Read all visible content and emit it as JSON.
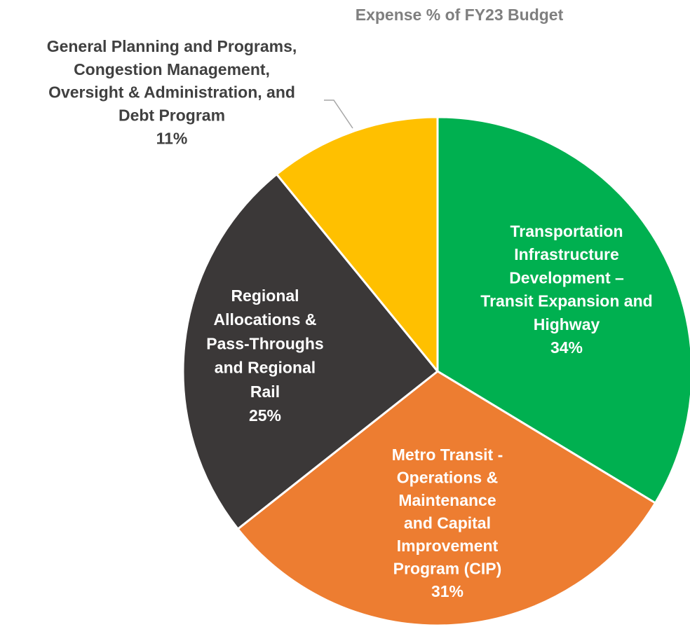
{
  "chart_data": {
    "type": "pie",
    "title": "Expense % of FY23 Budget",
    "categories": [
      "Transportation\nInfrastructure\nDevelopment –\nTransit Expansion and\nHighway",
      "Metro Transit -\nOperations &\nMaintenance\nand Capital\nImprovement\nProgram (CIP)",
      "Regional\nAllocations &\nPass-Throughs\nand Regional\nRail",
      "General Planning and Programs,\nCongestion Management,\nOversight & Administration, and\nDebt Program"
    ],
    "values": [
      34,
      31,
      25,
      11
    ],
    "value_labels": [
      "34%",
      "31%",
      "25%",
      "11%"
    ],
    "colors": [
      "#00b050",
      "#ed7d31",
      "#3b3838",
      "#ffc000"
    ],
    "label_colors": [
      "#ffffff",
      "#ffffff",
      "#ffffff",
      "#404040"
    ]
  }
}
